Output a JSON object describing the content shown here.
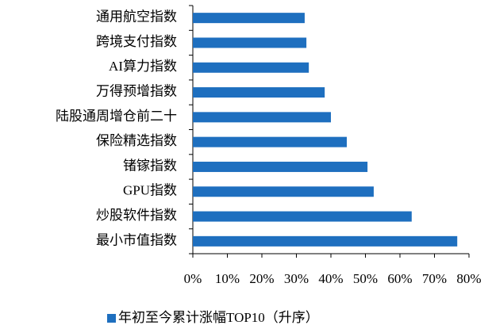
{
  "chart_data": {
    "type": "hbar",
    "categories": [
      "通用航空指数",
      "跨境支付指数",
      "AI算力指数",
      "万得预增指数",
      "陆股通周增仓前二十",
      "保险精选指数",
      "锗镓指数",
      "GPU指数",
      "炒股软件指数",
      "最小市值指数"
    ],
    "series": [
      {
        "name": "年初至今累计涨幅TOP10（升序）",
        "color": "#1e6fbf",
        "values": [
          32.4,
          32.9,
          33.6,
          38.2,
          40.0,
          44.6,
          50.6,
          52.4,
          63.4,
          76.6
        ]
      }
    ],
    "xlim": [
      0,
      80
    ],
    "xticks": [
      {
        "value": 0,
        "label": "0%"
      },
      {
        "value": 10,
        "label": "10%"
      },
      {
        "value": 20,
        "label": "20%"
      },
      {
        "value": 30,
        "label": "30%"
      },
      {
        "value": 40,
        "label": "40%"
      },
      {
        "value": 50,
        "label": "50%"
      },
      {
        "value": 60,
        "label": "60%"
      },
      {
        "value": 70,
        "label": "70%"
      },
      {
        "value": 80,
        "label": "80%"
      }
    ],
    "legend": "bottom"
  }
}
